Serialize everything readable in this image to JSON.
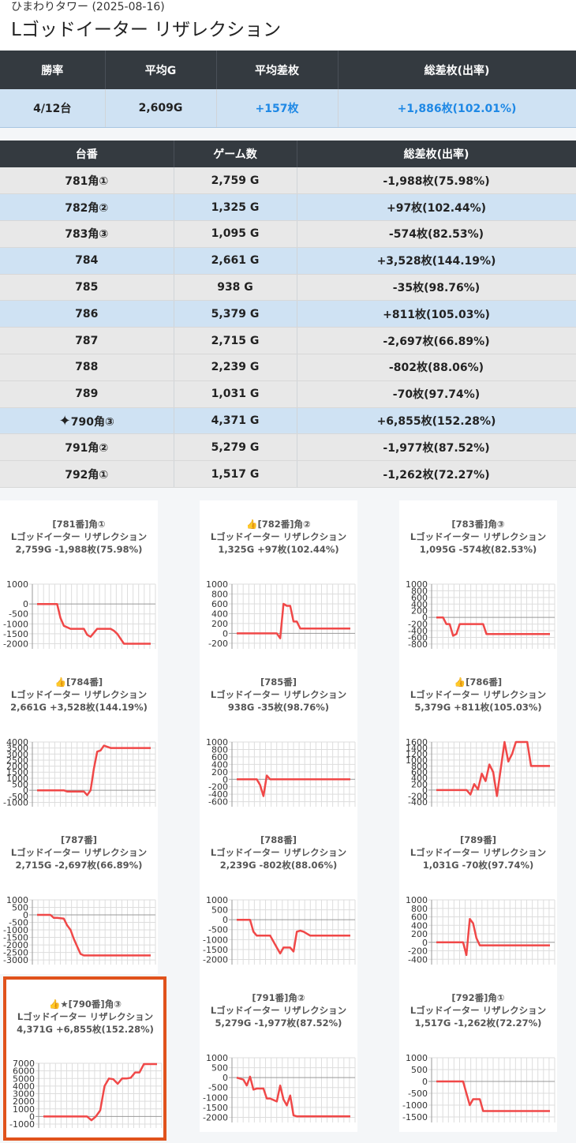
{
  "header": {
    "breadcrumb": "ひまわりタワー (2025-08-16)",
    "title": "Lゴッドイーター リザレクション"
  },
  "summary": {
    "headers": [
      "勝率",
      "平均G",
      "平均差枚",
      "総差枚(出率)"
    ],
    "values": [
      "4/12台",
      "2,609G",
      "+157枚",
      "+1,886枚(102.01%)"
    ]
  },
  "machines": {
    "headers": [
      "台番",
      "ゲーム数",
      "総差枚(出率)"
    ],
    "rows": [
      {
        "unit": "781角①",
        "games": "2,759 G",
        "diff": "-1,988枚(75.98%)",
        "win": false
      },
      {
        "unit": "782角②",
        "games": "1,325 G",
        "diff": "+97枚(102.44%)",
        "win": true
      },
      {
        "unit": "783角③",
        "games": "1,095 G",
        "diff": "-574枚(82.53%)",
        "win": false
      },
      {
        "unit": "784",
        "games": "2,661 G",
        "diff": "+3,528枚(144.19%)",
        "win": true
      },
      {
        "unit": "785",
        "games": "938 G",
        "diff": "-35枚(98.76%)",
        "win": false
      },
      {
        "unit": "786",
        "games": "5,379 G",
        "diff": "+811枚(105.03%)",
        "win": true
      },
      {
        "unit": "787",
        "games": "2,715 G",
        "diff": "-2,697枚(66.89%)",
        "win": false
      },
      {
        "unit": "788",
        "games": "2,239 G",
        "diff": "-802枚(88.06%)",
        "win": false
      },
      {
        "unit": "789",
        "games": "1,031 G",
        "diff": "-70枚(97.74%)",
        "win": false
      },
      {
        "unit": "790角③",
        "games": "4,371 G",
        "diff": "+6,855枚(152.28%)",
        "win": true,
        "sparkle": true
      },
      {
        "unit": "791角②",
        "games": "5,279 G",
        "diff": "-1,977枚(87.52%)",
        "win": false
      },
      {
        "unit": "792角①",
        "games": "1,517 G",
        "diff": "-1,262枚(72.27%)",
        "win": false
      }
    ]
  },
  "colors": {
    "line": "#f04848",
    "win_row": "#cfe2f3",
    "lose_row": "#e8e8e8",
    "header_bg": "#343a40",
    "highlight_border": "#e0521c",
    "plus_text": "#1e88e5"
  },
  "icons": {
    "thumbs": "thumbs-up-icon",
    "sparkle": "sparkle-icon"
  },
  "chart_data": [
    {
      "type": "line",
      "title_lines": [
        "[781番]角①",
        "Lゴッドイーター リザレクション",
        "2,759G -1,988枚(75.98%)"
      ],
      "yticks": [
        1000,
        0,
        -500,
        -1000,
        -1500,
        -2000
      ],
      "ylim": [
        -2100,
        1000
      ],
      "x": [
        0,
        2,
        4,
        6,
        7,
        8,
        10,
        12,
        14,
        15,
        16,
        18,
        20,
        22,
        23,
        24,
        26,
        28,
        30,
        32,
        34
      ],
      "values": [
        0,
        0,
        0,
        0,
        -700,
        -1100,
        -1250,
        -1250,
        -1250,
        -1550,
        -1650,
        -1250,
        -1250,
        -1250,
        -1350,
        -1500,
        -2000,
        -2000,
        -2000,
        -2000,
        -2000
      ]
    },
    {
      "type": "line",
      "title_lines": [
        "👍[782番]角②",
        "Lゴッドイーター リザレクション",
        "1,325G +97枚(102.44%)"
      ],
      "yticks": [
        1000,
        800,
        600,
        400,
        200,
        0,
        -200
      ],
      "ylim": [
        -250,
        1000
      ],
      "x": [
        0,
        2,
        4,
        6,
        8,
        10,
        12,
        13,
        14,
        15,
        16,
        17,
        18,
        19,
        20,
        22,
        24,
        26,
        28,
        30,
        34
      ],
      "values": [
        0,
        0,
        0,
        0,
        0,
        0,
        0,
        -100,
        600,
        560,
        560,
        240,
        240,
        100,
        100,
        100,
        100,
        100,
        100,
        100,
        100
      ]
    },
    {
      "type": "line",
      "title_lines": [
        "[783番]角③",
        "Lゴッドイーター リザレクション",
        "1,095G -574枚(82.53%)"
      ],
      "yticks": [
        1000,
        800,
        600,
        400,
        200,
        0,
        -200,
        -400,
        -600,
        -800
      ],
      "ylim": [
        -850,
        1000
      ],
      "x": [
        0,
        2,
        3,
        4,
        5,
        6,
        7,
        8,
        10,
        12,
        14,
        15,
        16,
        18,
        20,
        22,
        24,
        26,
        28,
        30,
        34
      ],
      "values": [
        0,
        0,
        -200,
        -200,
        -550,
        -500,
        -200,
        -200,
        -200,
        -200,
        -200,
        -500,
        -500,
        -500,
        -500,
        -500,
        -500,
        -500,
        -500,
        -500,
        -500
      ]
    },
    {
      "type": "line",
      "title_lines": [
        "👍[784番]",
        "Lゴッドイーター リザレクション",
        "2,661G +3,528枚(144.19%)"
      ],
      "yticks": [
        4000,
        3500,
        3000,
        2500,
        2000,
        1500,
        1000,
        500,
        0,
        -500,
        -1000
      ],
      "ylim": [
        -1100,
        4000
      ],
      "x": [
        0,
        2,
        4,
        6,
        8,
        9,
        10,
        12,
        14,
        15,
        16,
        17,
        18,
        19,
        20,
        22,
        24,
        26,
        28,
        30,
        34
      ],
      "values": [
        0,
        0,
        0,
        0,
        0,
        -100,
        -100,
        -100,
        -100,
        -400,
        0,
        1800,
        3200,
        3300,
        3700,
        3500,
        3500,
        3500,
        3500,
        3500,
        3500
      ]
    },
    {
      "type": "line",
      "title_lines": [
        "[785番]",
        "Lゴッドイーター リザレクション",
        "938G -35枚(98.76%)"
      ],
      "yticks": [
        1000,
        800,
        600,
        400,
        200,
        0,
        -200,
        -400,
        -600
      ],
      "ylim": [
        -650,
        1000
      ],
      "x": [
        0,
        2,
        4,
        6,
        7,
        8,
        9,
        10,
        12,
        14,
        16,
        18,
        20,
        22,
        24,
        26,
        28,
        30,
        32,
        34
      ],
      "values": [
        0,
        0,
        0,
        0,
        -150,
        -450,
        100,
        0,
        0,
        0,
        0,
        0,
        0,
        0,
        0,
        0,
        0,
        0,
        0,
        0
      ]
    },
    {
      "type": "line",
      "title_lines": [
        "👍[786番]",
        "Lゴッドイーター リザレクション",
        "5,379G +811枚(105.03%)"
      ],
      "yticks": [
        1600,
        1400,
        1200,
        1000,
        800,
        600,
        400,
        200,
        0,
        -200,
        -400
      ],
      "ylim": [
        -450,
        1600
      ],
      "x": [
        0,
        2,
        4,
        6,
        8,
        9,
        10,
        11,
        12,
        13,
        14,
        15,
        16,
        17,
        18,
        19,
        20,
        21,
        22,
        24,
        25,
        26,
        28,
        30
      ],
      "values": [
        0,
        0,
        0,
        0,
        0,
        -150,
        200,
        20,
        550,
        300,
        850,
        600,
        -200,
        700,
        1600,
        950,
        1200,
        1600,
        1600,
        1600,
        800,
        800,
        800,
        800
      ]
    },
    {
      "type": "line",
      "title_lines": [
        "[787番]",
        "Lゴッドイーター リザレクション",
        "2,715G -2,697枚(66.89%)"
      ],
      "yticks": [
        1000,
        500,
        0,
        -500,
        -1000,
        -1500,
        -2000,
        -2500,
        -3000
      ],
      "ylim": [
        -3100,
        1000
      ],
      "x": [
        0,
        2,
        4,
        5,
        6,
        8,
        9,
        10,
        11,
        12,
        13,
        14,
        16,
        18,
        20,
        22,
        24,
        26,
        28,
        30,
        34
      ],
      "values": [
        0,
        0,
        0,
        -200,
        -200,
        -250,
        -700,
        -1000,
        -1600,
        -2100,
        -2600,
        -2700,
        -2700,
        -2700,
        -2700,
        -2700,
        -2700,
        -2700,
        -2700,
        -2700,
        -2700
      ]
    },
    {
      "type": "line",
      "title_lines": [
        "[788番]",
        "Lゴッドイーター リザレクション",
        "2,239G -802枚(88.06%)"
      ],
      "yticks": [
        1000,
        500,
        0,
        -500,
        -1000,
        -1500,
        -2000
      ],
      "ylim": [
        -2100,
        1000
      ],
      "x": [
        0,
        2,
        4,
        5,
        6,
        7,
        8,
        10,
        12,
        13,
        14,
        15,
        16,
        17,
        18,
        19,
        20,
        22,
        24,
        26,
        28,
        30,
        34
      ],
      "values": [
        0,
        0,
        0,
        -600,
        -800,
        -800,
        -800,
        -800,
        -1400,
        -1700,
        -1400,
        -1400,
        -1400,
        -1600,
        -600,
        -550,
        -600,
        -800,
        -800,
        -800,
        -800,
        -800,
        -800
      ]
    },
    {
      "type": "line",
      "title_lines": [
        "[789番]",
        "Lゴッドイーター リザレクション",
        "1,031G -70枚(97.74%)"
      ],
      "yticks": [
        1000,
        800,
        600,
        400,
        200,
        0,
        -200,
        -400
      ],
      "ylim": [
        -450,
        1000
      ],
      "x": [
        0,
        2,
        4,
        6,
        8,
        9,
        10,
        11,
        12,
        13,
        14,
        16,
        18,
        20,
        22,
        24,
        26,
        28,
        30,
        34
      ],
      "values": [
        0,
        0,
        0,
        0,
        0,
        -300,
        550,
        450,
        100,
        -70,
        -70,
        -70,
        -70,
        -70,
        -70,
        -70,
        -70,
        -70,
        -70,
        -70
      ]
    },
    {
      "type": "line",
      "title_lines": [
        "👍★[790番]角③",
        "Lゴッドイーター リザレクション",
        "4,371G +6,855枚(152.28%)"
      ],
      "yticks": [
        7000,
        6000,
        5000,
        4000,
        3000,
        2000,
        1000,
        0,
        -1000
      ],
      "ylim": [
        -1100,
        7000
      ],
      "x": [
        0,
        2,
        4,
        6,
        8,
        10,
        11,
        12,
        13,
        14,
        15,
        16,
        17,
        18,
        19,
        20,
        21,
        22,
        23,
        24,
        25,
        26
      ],
      "values": [
        0,
        0,
        0,
        0,
        0,
        0,
        -500,
        0,
        800,
        4000,
        5000,
        4900,
        4300,
        5000,
        5000,
        5100,
        5800,
        5800,
        6900,
        6900,
        6900,
        6900
      ]
    },
    {
      "type": "line",
      "title_lines": [
        "[791番]角②",
        "Lゴッドイーター リザレクション",
        "5,279G -1,977枚(87.52%)"
      ],
      "yticks": [
        1000,
        500,
        0,
        -500,
        -1000,
        -1500,
        -2000
      ],
      "ylim": [
        -2100,
        1000
      ],
      "x": [
        0,
        2,
        3,
        4,
        5,
        6,
        8,
        9,
        10,
        12,
        13,
        14,
        15,
        16,
        17,
        18,
        19,
        20,
        22,
        24,
        26,
        28,
        30,
        34
      ],
      "values": [
        0,
        -100,
        -400,
        50,
        -600,
        -550,
        -550,
        -1050,
        -1050,
        -1200,
        -400,
        -1100,
        -1400,
        -900,
        -1900,
        -1950,
        -1950,
        -1950,
        -1950,
        -1950,
        -1950,
        -1950,
        -1950,
        -1950
      ]
    },
    {
      "type": "line",
      "title_lines": [
        "[792番]角①",
        "Lゴッドイーター リザレクション",
        "1,517G -1,262枚(72.27%)"
      ],
      "yticks": [
        1000,
        500,
        0,
        -500,
        -1000,
        -1500
      ],
      "ylim": [
        -1600,
        1000
      ],
      "x": [
        0,
        2,
        4,
        6,
        8,
        9,
        10,
        11,
        12,
        13,
        14,
        15,
        16,
        18,
        20,
        22,
        24,
        26,
        28,
        30,
        34
      ],
      "values": [
        0,
        0,
        0,
        0,
        0,
        -500,
        -1000,
        -750,
        -750,
        -750,
        -1250,
        -1250,
        -1250,
        -1250,
        -1250,
        -1250,
        -1250,
        -1250,
        -1250,
        -1250,
        -1250
      ]
    }
  ]
}
